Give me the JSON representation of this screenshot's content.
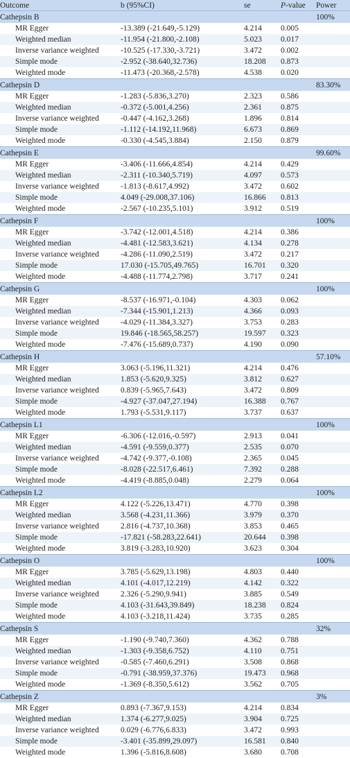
{
  "header": {
    "outcome": "Outcome",
    "b": "b (95%CI)",
    "se": "se",
    "p_italic": "P",
    "p_rest": "-value",
    "power": "Power"
  },
  "groups": [
    {
      "name": "Cathepsin B",
      "power": "100%",
      "rows": [
        {
          "method": "MR Egger",
          "b": "-13.389 (-21.649,-5.129)",
          "se": "4.214",
          "p": "0.005"
        },
        {
          "method": "Weighted median",
          "b": "-11.954 (-21.800,-2.108)",
          "se": "5.023",
          "p": "0.017"
        },
        {
          "method": "Inverse variance weighted",
          "b": "-10.525 (-17.330,-3.721)",
          "se": "3.472",
          "p": "0.002"
        },
        {
          "method": "Simple mode",
          "b": "-2.952 (-38.640,32.736)",
          "se": "18.208",
          "p": "0.873"
        },
        {
          "method": "Weighted mode",
          "b": "-11.473 (-20.368,-2.578)",
          "se": "4.538",
          "p": "0.020"
        }
      ]
    },
    {
      "name": "Cathepsin D",
      "power": "83.30%",
      "rows": [
        {
          "method": "MR Egger",
          "b": "-1.283 (-5.836,3.270)",
          "se": "2.323",
          "p": "0.586"
        },
        {
          "method": "Weighted median",
          "b": "-0.372 (-5.001,4.256)",
          "se": "2.361",
          "p": "0.875"
        },
        {
          "method": "Inverse variance weighted",
          "b": "-0.447 (-4.162,3.268)",
          "se": "1.896",
          "p": "0.814"
        },
        {
          "method": "Simple mode",
          "b": "-1.112 (-14.192,11.968)",
          "se": "6.673",
          "p": "0.869"
        },
        {
          "method": "Weighted mode",
          "b": "-0.330 (-4.545,3.884)",
          "se": "2.150",
          "p": "0.879"
        }
      ]
    },
    {
      "name": "Cathepsin E",
      "power": "99.60%",
      "rows": [
        {
          "method": "MR Egger",
          "b": "-3.406 (-11.666,4.854)",
          "se": "4.214",
          "p": "0.429"
        },
        {
          "method": "Weighted median",
          "b": "-2.311 (-10.340,5.719)",
          "se": "4.097",
          "p": "0.573"
        },
        {
          "method": "Inverse variance weighted",
          "b": "-1.813 (-8.617,4.992)",
          "se": "3.472",
          "p": "0.602"
        },
        {
          "method": "Simple mode",
          "b": "4.049 (-29.008,37.106)",
          "se": "16.866",
          "p": "0.813"
        },
        {
          "method": "Weighted mode",
          "b": "-2.567 (-10.235,5.101)",
          "se": "3.912",
          "p": "0.519"
        }
      ]
    },
    {
      "name": "Cathepsin F",
      "power": "100%",
      "rows": [
        {
          "method": "MR Egger",
          "b": "-3.742 (-12.001,4.518)",
          "se": "4.214",
          "p": "0.386"
        },
        {
          "method": "Weighted median",
          "b": "-4.481 (-12.583,3.621)",
          "se": "4.134",
          "p": "0.278"
        },
        {
          "method": "Inverse variance weighted",
          "b": "-4.286 (-11.090,2.519)",
          "se": "3.472",
          "p": "0.217"
        },
        {
          "method": "Simple mode",
          "b": "17.030 (-15.705,49.765)",
          "se": "16.701",
          "p": "0.320"
        },
        {
          "method": "Weighted mode",
          "b": "-4.488 (-11.774,2.798)",
          "se": "3.717",
          "p": "0.241"
        }
      ]
    },
    {
      "name": "Cathepsin G",
      "power": "100%",
      "rows": [
        {
          "method": "MR Egger",
          "b": "-8.537 (-16.971,-0.104)",
          "se": "4.303",
          "p": "0.062"
        },
        {
          "method": "Weighted median",
          "b": "-7.344 (-15.901,1.213)",
          "se": "4.366",
          "p": "0.093"
        },
        {
          "method": "Inverse variance weighted",
          "b": "-4.029 (-11.384,3.327)",
          "se": "3.753",
          "p": "0.283"
        },
        {
          "method": "Simple mode",
          "b": "19.846 (-18.565,58.257)",
          "se": "19.597",
          "p": "0.323"
        },
        {
          "method": "Weighted mode",
          "b": "-7.476 (-15.689,0.737)",
          "se": "4.190",
          "p": "0.090"
        }
      ]
    },
    {
      "name": "Cathepsin H",
      "power": "57.10%",
      "rows": [
        {
          "method": "MR Egger",
          "b": "3.063 (-5.196,11.321)",
          "se": "4.214",
          "p": "0.476"
        },
        {
          "method": "Weighted median",
          "b": "1.853 (-5.620,9.325)",
          "se": "3.812",
          "p": "0.627"
        },
        {
          "method": "Inverse variance weighted",
          "b": "0.839 (-5.965,7.643)",
          "se": "3.472",
          "p": "0.809"
        },
        {
          "method": "Simple mode",
          "b": "-4.927 (-37.047,27.194)",
          "se": "16.388",
          "p": "0.767"
        },
        {
          "method": "Weighted mode",
          "b": "1.793 (-5.531,9.117)",
          "se": "3.737",
          "p": "0.637"
        }
      ]
    },
    {
      "name": "Cathepsin L1",
      "power": "100%",
      "rows": [
        {
          "method": "MR Egger",
          "b": "-6.306 (-12.016,-0.597)",
          "se": "2.913",
          "p": "0.041"
        },
        {
          "method": "Weighted median",
          "b": "-4.591 (-9.559,0.377)",
          "se": "2.535",
          "p": "0.070"
        },
        {
          "method": "Inverse variance weighted",
          "b": "-4.742 (-9.377,-0.108)",
          "se": "2.365",
          "p": "0.045"
        },
        {
          "method": "Simple mode",
          "b": "-8.028 (-22.517,6.461)",
          "se": "7.392",
          "p": "0.288"
        },
        {
          "method": "Weighted mode",
          "b": "-4.419 (-8.885,0.048)",
          "se": "2.279",
          "p": "0.064"
        }
      ]
    },
    {
      "name": "Cathepsin L2",
      "power": "100%",
      "rows": [
        {
          "method": "MR Egger",
          "b": "4.122 (-5.226,13.471)",
          "se": "4.770",
          "p": "0.398"
        },
        {
          "method": "Weighted median",
          "b": "3.568 (-4.231,11.366)",
          "se": "3.979",
          "p": "0.370"
        },
        {
          "method": "Inverse variance weighted",
          "b": "2.816 (-4.737,10.368)",
          "se": "3.853",
          "p": "0.465"
        },
        {
          "method": "Simple mode",
          "b": "-17.821 (-58.283,22.641)",
          "se": "20.644",
          "p": "0.398"
        },
        {
          "method": "Weighted mode",
          "b": "3.819 (-3.283,10.920)",
          "se": "3.623",
          "p": "0.304"
        }
      ]
    },
    {
      "name": "Cathepsin O",
      "power": "100%",
      "rows": [
        {
          "method": "MR Egger",
          "b": "3.785 (-5.629,13.198)",
          "se": "4.803",
          "p": "0.440"
        },
        {
          "method": "Weighted median",
          "b": "4.101 (-4.017,12.219)",
          "se": "4.142",
          "p": "0.322"
        },
        {
          "method": "Inverse variance weighted",
          "b": "2.326 (-5.290,9.941)",
          "se": "3.885",
          "p": "0.549"
        },
        {
          "method": "Simple mode",
          "b": "4.103 (-31.643,39.849)",
          "se": "18.238",
          "p": "0.824"
        },
        {
          "method": "Weighted mode",
          "b": "4.103 (-3.218,11.424)",
          "se": "3.735",
          "p": "0.285"
        }
      ]
    },
    {
      "name": "Cathepsin S",
      "power": "32%",
      "rows": [
        {
          "method": "MR Egger",
          "b": "-1.190 (-9.740,7.360)",
          "se": "4.362",
          "p": "0.788"
        },
        {
          "method": "Weighted median",
          "b": "-1.303 (-9.358,6.752)",
          "se": "4.110",
          "p": "0.751"
        },
        {
          "method": "Inverse variance weighted",
          "b": "-0.585 (-7.460,6.291)",
          "se": "3.508",
          "p": "0.868"
        },
        {
          "method": "Simple mode",
          "b": "-0.791 (-38.959,37.376)",
          "se": "19.473",
          "p": "0.968"
        },
        {
          "method": "Weighted mode",
          "b": "-1.369 (-8.350,5.612)",
          "se": "3.562",
          "p": "0.705"
        }
      ]
    },
    {
      "name": "Cathepsin Z",
      "power": "3%",
      "rows": [
        {
          "method": "MR Egger",
          "b": "0.893 (-7.367,9.153)",
          "se": "4.214",
          "p": "0.834"
        },
        {
          "method": "Weighted median",
          "b": "1.374 (-6.277,9.025)",
          "se": "3.904",
          "p": "0.725"
        },
        {
          "method": "Inverse variance weighted",
          "b": "0.029 (-6.776,6.833)",
          "se": "3.472",
          "p": "0.993"
        },
        {
          "method": "Simple mode",
          "b": "-3.401 (-35.899,29.097)",
          "se": "16.581",
          "p": "0.840"
        },
        {
          "method": "Weighted mode",
          "b": "1.396 (-5.816,8.608)",
          "se": "3.680",
          "p": "0.708"
        }
      ]
    }
  ]
}
